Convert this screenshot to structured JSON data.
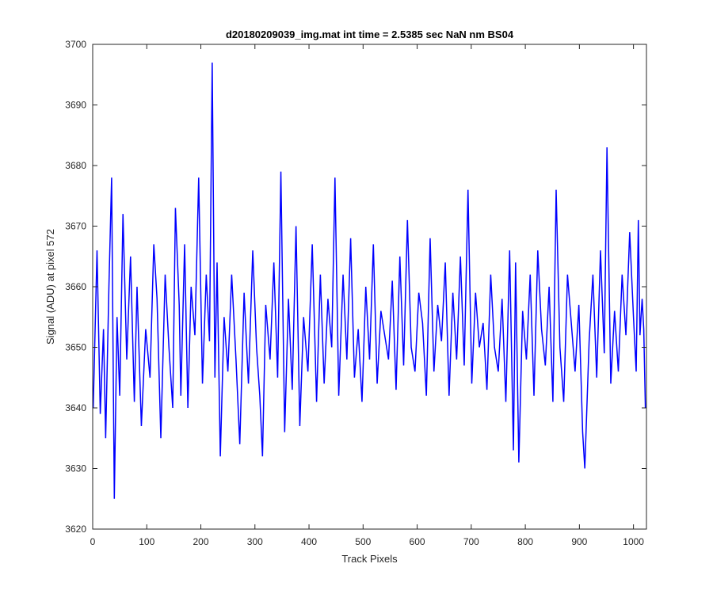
{
  "chart_data": {
    "type": "line",
    "title": "d20180209039_img.mat int time = 2.5385 sec  NaN nm BS04",
    "xlabel": "Track Pixels",
    "ylabel": "Signal (ADU) at pixel 572",
    "xlim": [
      0,
      1024
    ],
    "ylim": [
      3620,
      3700
    ],
    "xticks": [
      0,
      100,
      200,
      300,
      400,
      500,
      600,
      700,
      800,
      900,
      1000
    ],
    "yticks": [
      3620,
      3630,
      3640,
      3650,
      3660,
      3670,
      3680,
      3690,
      3700
    ],
    "xtick_labels": [
      "0",
      "100",
      "200",
      "300",
      "400",
      "500",
      "600",
      "700",
      "800",
      "900",
      "1000"
    ],
    "ytick_labels": [
      "3620",
      "3630",
      "3640",
      "3650",
      "3660",
      "3670",
      "3680",
      "3690",
      "3700"
    ],
    "grid": false,
    "series": [
      {
        "color": "#0000ff",
        "x": [
          1,
          8,
          14,
          20,
          24,
          30,
          35,
          40,
          45,
          50,
          56,
          63,
          70,
          77,
          82,
          90,
          98,
          106,
          113,
          119,
          126,
          134,
          141,
          148,
          153,
          160,
          163,
          170,
          176,
          182,
          189,
          196,
          203,
          210,
          216,
          221,
          226,
          230,
          236,
          243,
          250,
          257,
          265,
          272,
          280,
          288,
          296,
          303,
          309,
          314,
          320,
          328,
          335,
          342,
          348,
          355,
          362,
          369,
          376,
          383,
          390,
          398,
          406,
          414,
          421,
          428,
          435,
          442,
          448,
          455,
          463,
          470,
          477,
          484,
          491,
          498,
          505,
          512,
          519,
          526,
          533,
          540,
          547,
          554,
          561,
          568,
          575,
          582,
          589,
          596,
          603,
          610,
          617,
          624,
          631,
          638,
          645,
          652,
          659,
          666,
          673,
          680,
          687,
          694,
          701,
          708,
          715,
          722,
          729,
          736,
          743,
          750,
          757,
          764,
          771,
          778,
          782,
          788,
          795,
          802,
          809,
          816,
          823,
          830,
          837,
          844,
          851,
          857,
          864,
          871,
          878,
          885,
          892,
          899,
          906,
          910,
          918,
          925,
          932,
          939,
          946,
          951,
          958,
          965,
          972,
          979,
          986,
          993,
          1000,
          1005,
          1009,
          1012,
          1016,
          1019,
          1022
        ],
        "y": [
          3640,
          3666,
          3639,
          3653,
          3635,
          3660,
          3678,
          3625,
          3655,
          3642,
          3672,
          3648,
          3665,
          3641,
          3660,
          3637,
          3653,
          3645,
          3667,
          3658,
          3635,
          3662,
          3650,
          3640,
          3673,
          3657,
          3642,
          3667,
          3640,
          3660,
          3652,
          3678,
          3644,
          3662,
          3651,
          3697,
          3645,
          3664,
          3632,
          3655,
          3646,
          3662,
          3648,
          3634,
          3659,
          3644,
          3666,
          3650,
          3642,
          3632,
          3657,
          3648,
          3664,
          3645,
          3679,
          3636,
          3658,
          3643,
          3670,
          3637,
          3655,
          3646,
          3667,
          3641,
          3662,
          3644,
          3658,
          3650,
          3678,
          3642,
          3662,
          3648,
          3668,
          3645,
          3653,
          3641,
          3660,
          3648,
          3667,
          3644,
          3656,
          3652,
          3648,
          3661,
          3643,
          3665,
          3647,
          3671,
          3650,
          3646,
          3659,
          3654,
          3642,
          3668,
          3646,
          3657,
          3651,
          3664,
          3642,
          3659,
          3648,
          3665,
          3647,
          3676,
          3644,
          3659,
          3650,
          3654,
          3643,
          3662,
          3650,
          3646,
          3658,
          3641,
          3666,
          3633,
          3664,
          3631,
          3656,
          3648,
          3662,
          3642,
          3666,
          3653,
          3647,
          3660,
          3641,
          3676,
          3650,
          3641,
          3662,
          3654,
          3646,
          3657,
          3636,
          3630,
          3651,
          3662,
          3645,
          3666,
          3649,
          3683,
          3644,
          3656,
          3646,
          3662,
          3652,
          3669,
          3655,
          3646,
          3671,
          3652,
          3658,
          3653,
          3640
        ]
      }
    ]
  }
}
